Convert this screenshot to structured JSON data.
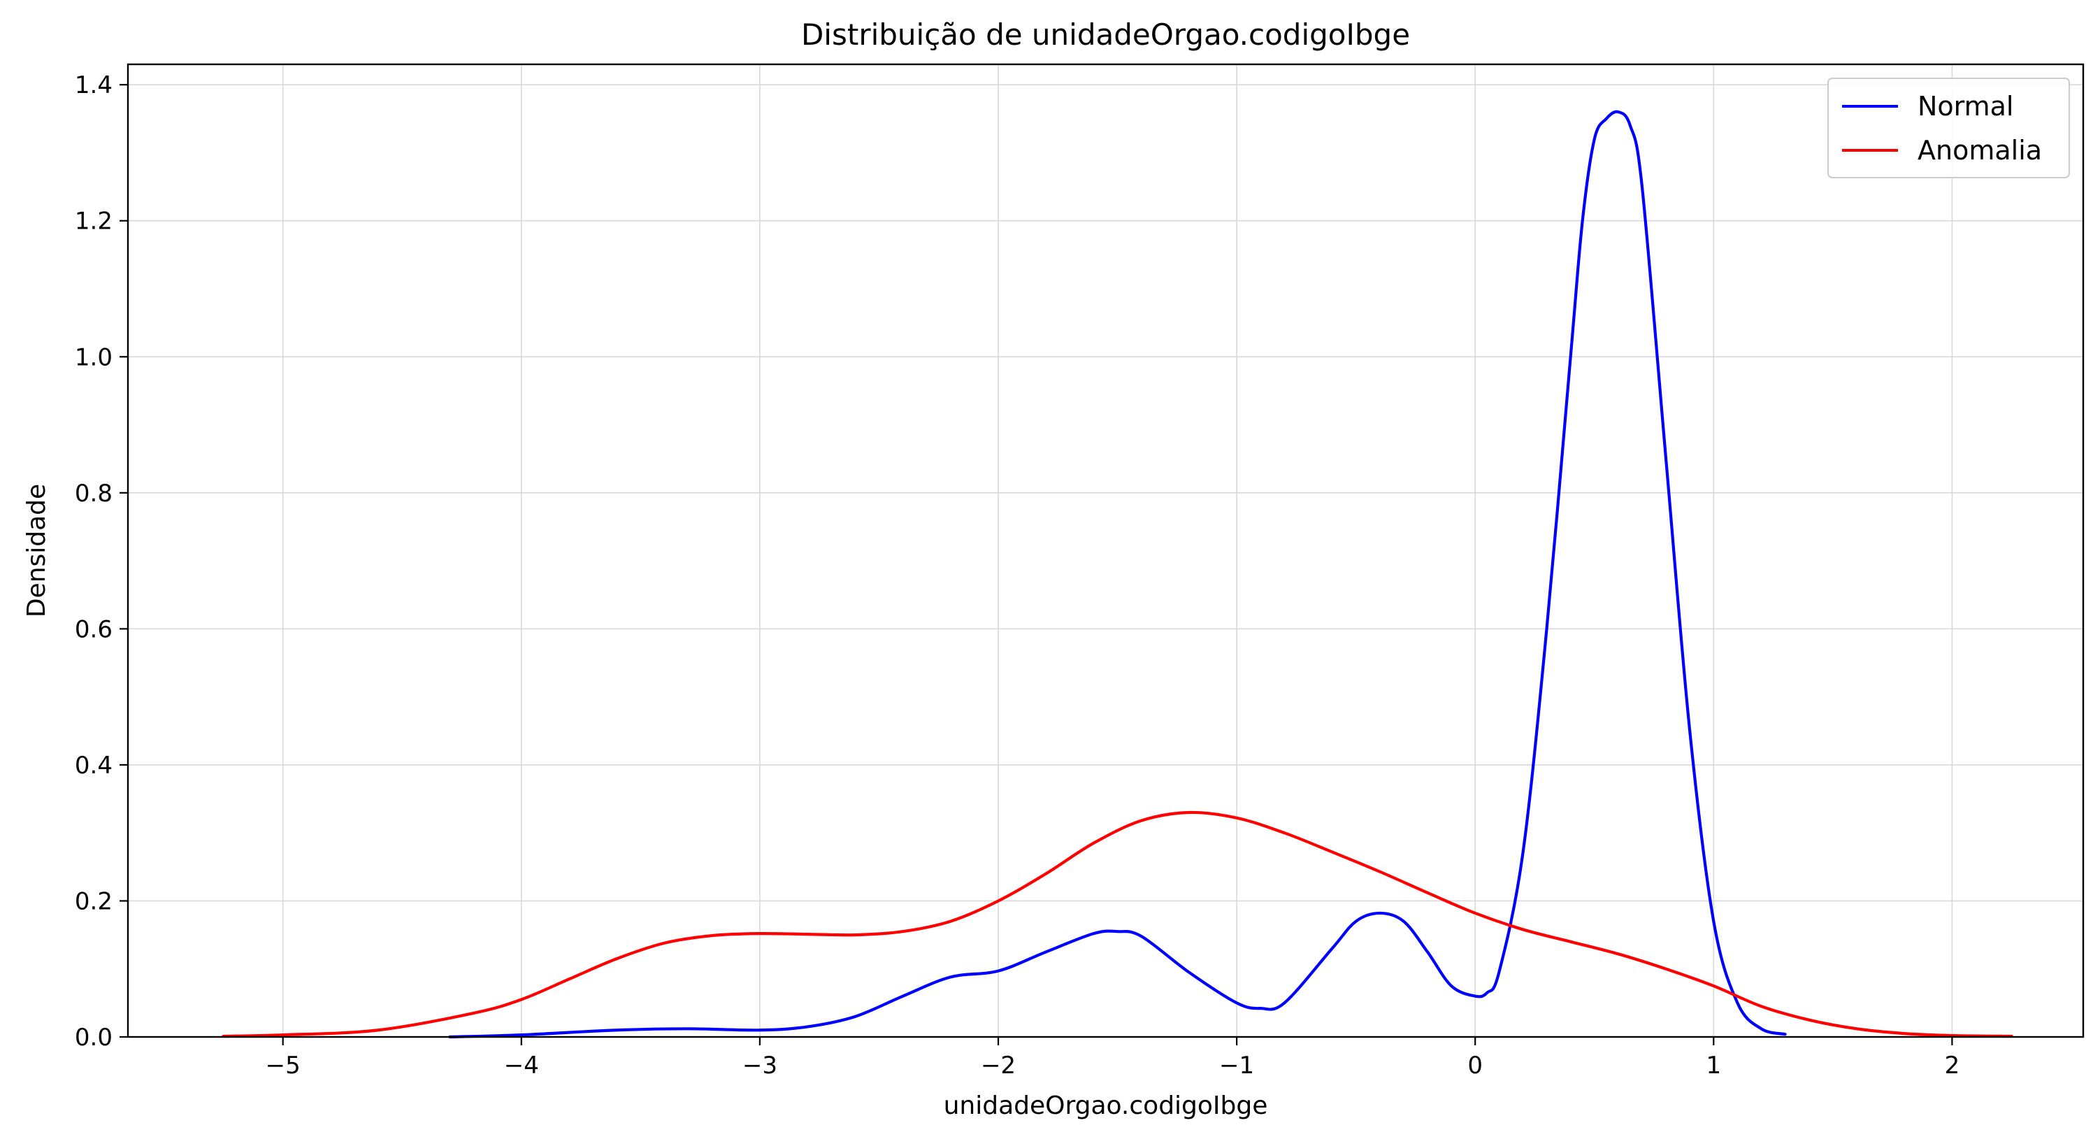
{
  "chart_data": {
    "type": "line",
    "title": "Distribuição de unidadeOrgao.codigoIbge",
    "xlabel": "unidadeOrgao.codigoIbge",
    "ylabel": "Densidade",
    "xlim": [
      -5.65,
      2.55
    ],
    "ylim": [
      0.0,
      1.43
    ],
    "xticks": [
      -5,
      -4,
      -3,
      -2,
      -1,
      0,
      1,
      2
    ],
    "xtick_labels": [
      "−5",
      "−4",
      "−3",
      "−2",
      "−1",
      "0",
      "1",
      "2"
    ],
    "yticks": [
      0.0,
      0.2,
      0.4,
      0.6,
      0.8,
      1.0,
      1.2,
      1.4
    ],
    "ytick_labels": [
      "0.0",
      "0.2",
      "0.4",
      "0.6",
      "0.8",
      "1.0",
      "1.2",
      "1.4"
    ],
    "grid": true,
    "legend_position": "top-right",
    "series": [
      {
        "name": "Normal",
        "color": "#0000ff",
        "x": [
          -4.3,
          -4.0,
          -3.6,
          -3.3,
          -3.0,
          -2.8,
          -2.6,
          -2.4,
          -2.2,
          -2.0,
          -1.8,
          -1.6,
          -1.5,
          -1.4,
          -1.2,
          -1.0,
          -0.9,
          -0.8,
          -0.6,
          -0.5,
          -0.4,
          -0.3,
          -0.2,
          -0.1,
          0.0,
          0.05,
          0.1,
          0.2,
          0.3,
          0.4,
          0.45,
          0.5,
          0.55,
          0.6,
          0.65,
          0.7,
          0.8,
          0.9,
          1.0,
          1.1,
          1.2,
          1.3
        ],
        "y": [
          0.0,
          0.003,
          0.01,
          0.012,
          0.01,
          0.015,
          0.03,
          0.06,
          0.088,
          0.097,
          0.125,
          0.152,
          0.155,
          0.148,
          0.095,
          0.05,
          0.042,
          0.05,
          0.13,
          0.17,
          0.182,
          0.17,
          0.125,
          0.075,
          0.06,
          0.065,
          0.095,
          0.27,
          0.6,
          1.0,
          1.2,
          1.32,
          1.35,
          1.36,
          1.34,
          1.25,
          0.85,
          0.45,
          0.17,
          0.05,
          0.012,
          0.004
        ]
      },
      {
        "name": "Anomalia",
        "color": "#ff0000",
        "x": [
          -5.25,
          -5.0,
          -4.6,
          -4.2,
          -4.0,
          -3.8,
          -3.6,
          -3.4,
          -3.2,
          -3.0,
          -2.8,
          -2.6,
          -2.4,
          -2.2,
          -2.0,
          -1.8,
          -1.6,
          -1.4,
          -1.2,
          -1.0,
          -0.8,
          -0.6,
          -0.4,
          -0.2,
          0.0,
          0.2,
          0.4,
          0.6,
          0.8,
          1.0,
          1.2,
          1.4,
          1.6,
          1.8,
          2.0,
          2.25
        ],
        "y": [
          0.001,
          0.003,
          0.01,
          0.035,
          0.055,
          0.085,
          0.115,
          0.138,
          0.149,
          0.152,
          0.151,
          0.15,
          0.155,
          0.17,
          0.2,
          0.24,
          0.285,
          0.318,
          0.33,
          0.322,
          0.3,
          0.272,
          0.243,
          0.212,
          0.182,
          0.158,
          0.14,
          0.122,
          0.1,
          0.075,
          0.045,
          0.025,
          0.012,
          0.005,
          0.002,
          0.001
        ]
      }
    ]
  }
}
